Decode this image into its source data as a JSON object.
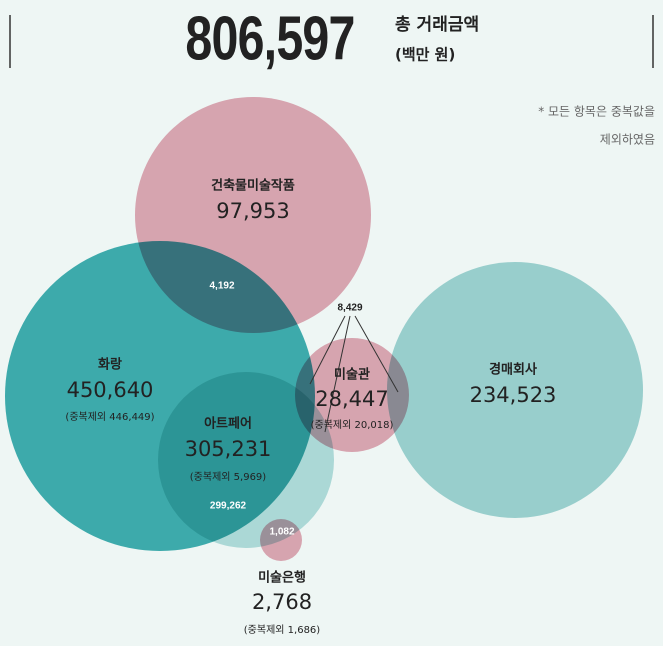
{
  "header": {
    "total": "806,597",
    "label": "총 거래금액",
    "unit": "(백만 원)"
  },
  "note": [
    "* 모든 항목은 중복값을",
    "제외하였음"
  ],
  "nodes": [
    {
      "name": "건축물미술작품",
      "value": "97,953"
    },
    {
      "name": "화랑",
      "value": "450,640",
      "dedup": "(중복제외 446,449)"
    },
    {
      "name": "아트페어",
      "value": "305,231",
      "dedup": "(중복제외 5,969)"
    },
    {
      "name": "미술관",
      "value": "28,447",
      "dedup": "(중복제외 20,018)"
    },
    {
      "name": "경매회사",
      "value": "234,523"
    },
    {
      "name": "미술은행",
      "value": "2,768",
      "dedup": "(중복제외 1,686)"
    }
  ],
  "overlaps": [
    "4,192",
    "8,429",
    "299,262",
    "1,082"
  ]
}
